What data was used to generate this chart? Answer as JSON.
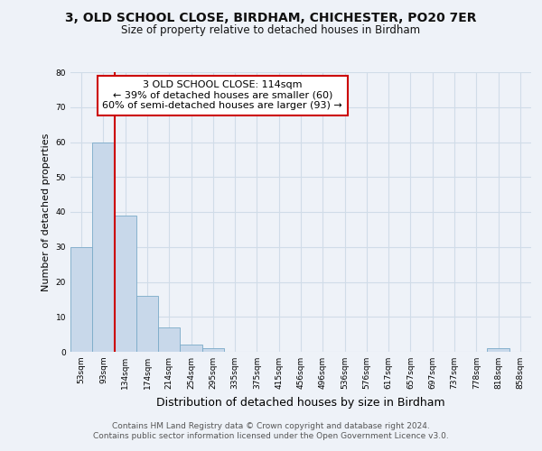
{
  "title1": "3, OLD SCHOOL CLOSE, BIRDHAM, CHICHESTER, PO20 7ER",
  "title2": "Size of property relative to detached houses in Birdham",
  "xlabel": "Distribution of detached houses by size in Birdham",
  "ylabel": "Number of detached properties",
  "categories": [
    "53sqm",
    "93sqm",
    "134sqm",
    "174sqm",
    "214sqm",
    "254sqm",
    "295sqm",
    "335sqm",
    "375sqm",
    "415sqm",
    "456sqm",
    "496sqm",
    "536sqm",
    "576sqm",
    "617sqm",
    "657sqm",
    "697sqm",
    "737sqm",
    "778sqm",
    "818sqm",
    "858sqm"
  ],
  "values": [
    30,
    60,
    39,
    16,
    7,
    2,
    1,
    0,
    0,
    0,
    0,
    0,
    0,
    0,
    0,
    0,
    0,
    0,
    0,
    1,
    0
  ],
  "bar_color": "#c8d8ea",
  "bar_edge_color": "#7aaac8",
  "annotation_text_line1": "3 OLD SCHOOL CLOSE: 114sqm",
  "annotation_text_line2": "← 39% of detached houses are smaller (60)",
  "annotation_text_line3": "60% of semi-detached houses are larger (93) →",
  "annotation_box_color": "#ffffff",
  "annotation_box_edge": "#cc0000",
  "vline_color": "#cc0000",
  "vline_x": 1.5,
  "ylim": [
    0,
    80
  ],
  "yticks": [
    0,
    10,
    20,
    30,
    40,
    50,
    60,
    70,
    80
  ],
  "footer1": "Contains HM Land Registry data © Crown copyright and database right 2024.",
  "footer2": "Contains public sector information licensed under the Open Government Licence v3.0.",
  "bg_color": "#eef2f8",
  "grid_color": "#d0dce8",
  "plot_bg_color": "#eef2f8"
}
